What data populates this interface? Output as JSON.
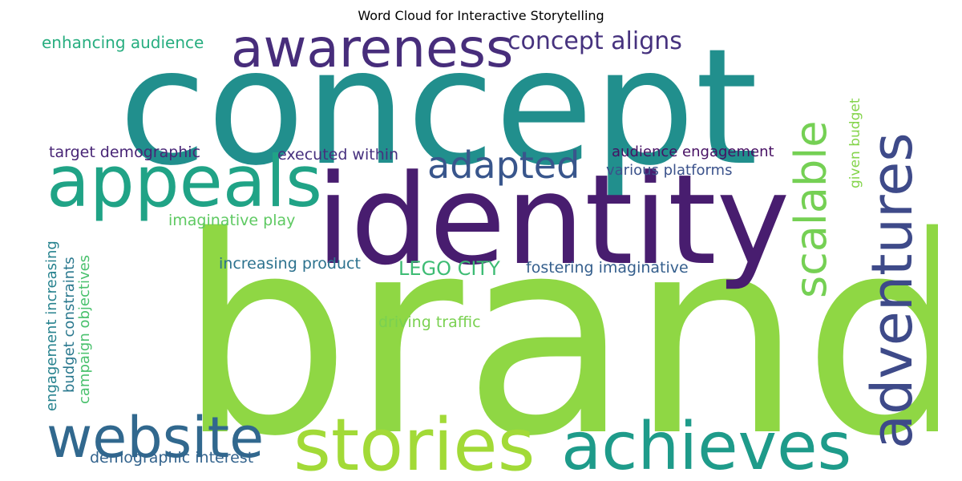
{
  "title": "Word Cloud for Interactive Storytelling",
  "words": {
    "brand": {
      "text": "brand",
      "color": "#8fd744"
    },
    "concept": {
      "text": "concept",
      "color": "#218f8d"
    },
    "identity": {
      "text": "identity",
      "color": "#481d6f"
    },
    "appeals": {
      "text": "appeals",
      "color": "#20a386"
    },
    "awareness": {
      "text": "awareness",
      "color": "#472d7b"
    },
    "adventures": {
      "text": "adventures",
      "color": "#3e4a89"
    },
    "scalable": {
      "text": "scalable",
      "color": "#75d054"
    },
    "stories": {
      "text": "stories",
      "color": "#a2da37"
    },
    "achieves": {
      "text": "achieves",
      "color": "#1e9b8a"
    },
    "website": {
      "text": "website",
      "color": "#31688e"
    },
    "adapted": {
      "text": "adapted",
      "color": "#39568c"
    },
    "concept_aligns": {
      "text": "concept aligns",
      "color": "#46327e"
    },
    "enhancing_audience": {
      "text": "enhancing audience",
      "color": "#28ae80"
    },
    "target_demographic": {
      "text": "target demographic",
      "color": "#482576"
    },
    "executed_within": {
      "text": "executed within",
      "color": "#46307e"
    },
    "audience_engagement": {
      "text": "audience engagement",
      "color": "#471063"
    },
    "various_platforms": {
      "text": "various platforms",
      "color": "#3b528b"
    },
    "imaginative_play": {
      "text": "imaginative play",
      "color": "#5ec962"
    },
    "increasing_product": {
      "text": "increasing product",
      "color": "#2c728e"
    },
    "lego_city": {
      "text": "LEGO CITY",
      "color": "#3dbc74"
    },
    "fostering_imaginative": {
      "text": "fostering imaginative",
      "color": "#355f8d"
    },
    "driving_traffic": {
      "text": "driving traffic",
      "color": "#7ad151"
    },
    "demographic_interest": {
      "text": "demographic interest",
      "color": "#33638d"
    },
    "given_budget": {
      "text": "given budget",
      "color": "#84d44b"
    },
    "engagement_increasing": {
      "text": "engagement increasing",
      "color": "#26828e"
    },
    "budget_constraints": {
      "text": "budget constraints",
      "color": "#2a788e"
    },
    "campaign_objectives": {
      "text": "campaign objectives",
      "color": "#4ac16d"
    }
  }
}
